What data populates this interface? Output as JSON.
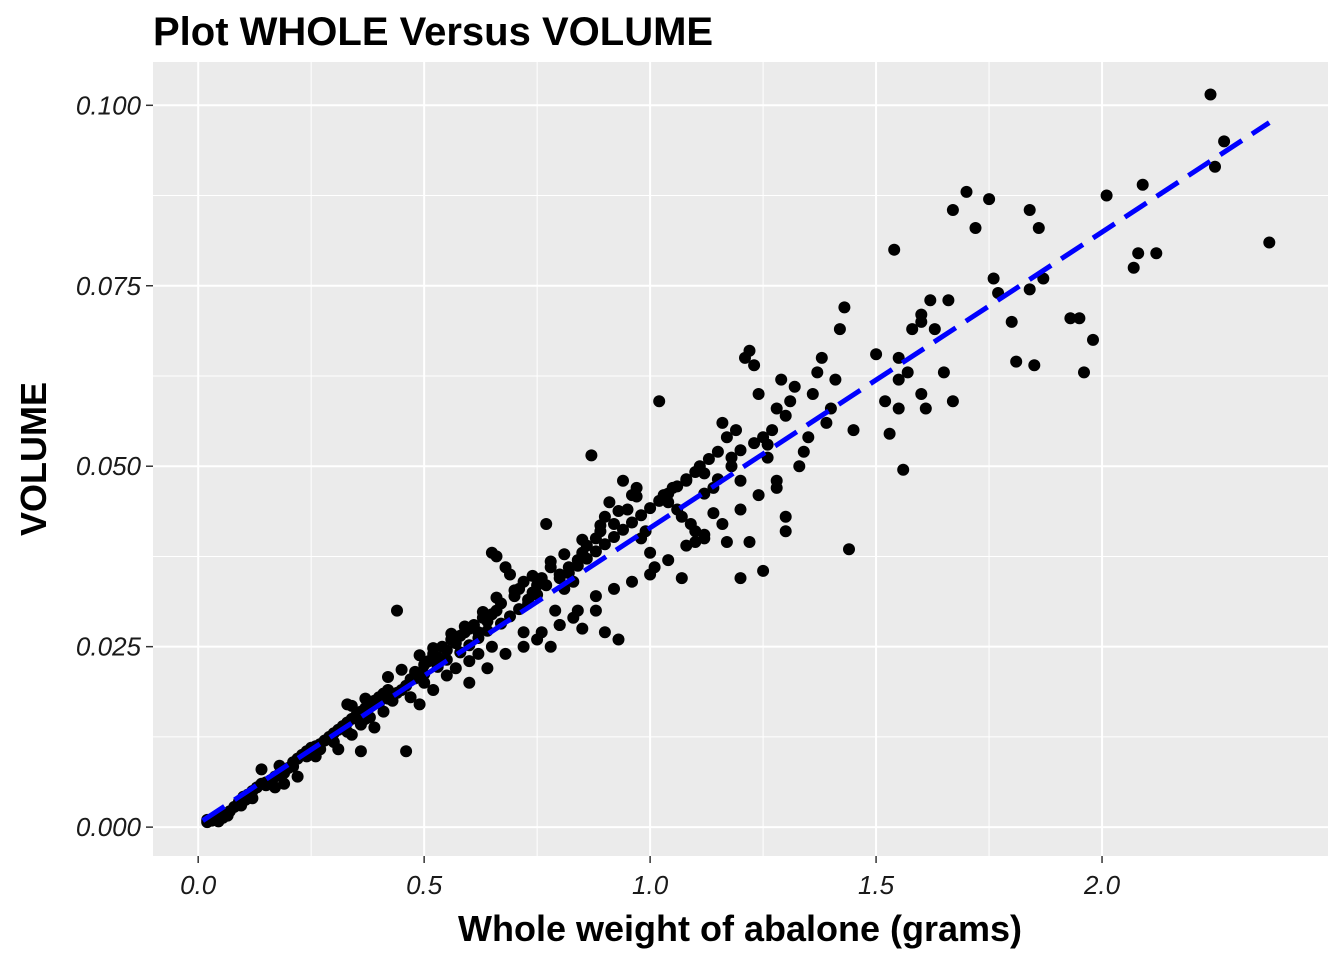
{
  "chart_data": {
    "type": "scatter",
    "title": "Plot WHOLE Versus VOLUME",
    "xlabel": "Whole weight of abalone (grams)",
    "ylabel": "VOLUME",
    "xlim": [
      -0.1,
      2.5
    ],
    "ylim": [
      -0.004,
      0.106
    ],
    "x_ticks": [
      0.0,
      0.5,
      1.0,
      1.5,
      2.0
    ],
    "x_tick_labels": [
      "0.0",
      "0.5",
      "1.0",
      "1.5",
      "2.0"
    ],
    "y_ticks": [
      0.0,
      0.025,
      0.05,
      0.075,
      0.1
    ],
    "y_tick_labels": [
      "0.000",
      "0.025",
      "0.050",
      "0.075",
      "0.100"
    ],
    "grid": true,
    "background": "#ebebeb",
    "point_color": "#000000",
    "trend_color": "#0000ff",
    "trend_line": {
      "style": "dashed",
      "x": [
        0.01,
        2.37
      ],
      "y": [
        0.0009,
        0.0976
      ]
    },
    "points": [
      [
        0.02,
        0.0007
      ],
      [
        0.03,
        0.0009
      ],
      [
        0.04,
        0.0012
      ],
      [
        0.05,
        0.0015
      ],
      [
        0.06,
        0.0018
      ],
      [
        0.035,
        0.001
      ],
      [
        0.045,
        0.0008
      ],
      [
        0.055,
        0.0013
      ],
      [
        0.065,
        0.0016
      ],
      [
        0.09,
        0.0035
      ],
      [
        0.1,
        0.0042
      ],
      [
        0.11,
        0.0045
      ],
      [
        0.12,
        0.005
      ],
      [
        0.095,
        0.003
      ],
      [
        0.105,
        0.0038
      ],
      [
        0.13,
        0.0055
      ],
      [
        0.14,
        0.006
      ],
      [
        0.15,
        0.0058
      ],
      [
        0.16,
        0.0065
      ],
      [
        0.17,
        0.007
      ],
      [
        0.18,
        0.0085
      ],
      [
        0.19,
        0.0075
      ],
      [
        0.2,
        0.0082
      ],
      [
        0.21,
        0.009
      ],
      [
        0.22,
        0.0095
      ],
      [
        0.23,
        0.01
      ],
      [
        0.24,
        0.0105
      ],
      [
        0.25,
        0.011
      ],
      [
        0.26,
        0.0112
      ],
      [
        0.27,
        0.0115
      ],
      [
        0.28,
        0.012
      ],
      [
        0.29,
        0.0125
      ],
      [
        0.3,
        0.013
      ],
      [
        0.31,
        0.0135
      ],
      [
        0.32,
        0.014
      ],
      [
        0.33,
        0.0145
      ],
      [
        0.34,
        0.015
      ],
      [
        0.35,
        0.0155
      ],
      [
        0.36,
        0.016
      ],
      [
        0.37,
        0.0165
      ],
      [
        0.38,
        0.017
      ],
      [
        0.39,
        0.0175
      ],
      [
        0.4,
        0.018
      ],
      [
        0.41,
        0.0185
      ],
      [
        0.42,
        0.019
      ],
      [
        0.14,
        0.008
      ],
      [
        0.17,
        0.0055
      ],
      [
        0.19,
        0.006
      ],
      [
        0.22,
        0.007
      ],
      [
        0.26,
        0.0098
      ],
      [
        0.31,
        0.0108
      ],
      [
        0.34,
        0.0128
      ],
      [
        0.36,
        0.0105
      ],
      [
        0.39,
        0.0138
      ],
      [
        0.33,
        0.017
      ],
      [
        0.37,
        0.015
      ],
      [
        0.41,
        0.016
      ],
      [
        0.44,
        0.03
      ],
      [
        0.46,
        0.0105
      ],
      [
        0.43,
        0.0175
      ],
      [
        0.45,
        0.019
      ],
      [
        0.47,
        0.0205
      ],
      [
        0.48,
        0.0215
      ],
      [
        0.5,
        0.0225
      ],
      [
        0.51,
        0.023
      ],
      [
        0.52,
        0.024
      ],
      [
        0.53,
        0.0235
      ],
      [
        0.54,
        0.025
      ],
      [
        0.55,
        0.0245
      ],
      [
        0.56,
        0.026
      ],
      [
        0.57,
        0.0255
      ],
      [
        0.58,
        0.0265
      ],
      [
        0.59,
        0.027
      ],
      [
        0.6,
        0.0275
      ],
      [
        0.61,
        0.028
      ],
      [
        0.62,
        0.027
      ],
      [
        0.63,
        0.029
      ],
      [
        0.64,
        0.0285
      ],
      [
        0.65,
        0.0295
      ],
      [
        0.66,
        0.03
      ],
      [
        0.67,
        0.031
      ],
      [
        0.47,
        0.018
      ],
      [
        0.49,
        0.017
      ],
      [
        0.5,
        0.02
      ],
      [
        0.52,
        0.019
      ],
      [
        0.55,
        0.021
      ],
      [
        0.57,
        0.022
      ],
      [
        0.6,
        0.023
      ],
      [
        0.62,
        0.024
      ],
      [
        0.65,
        0.025
      ],
      [
        0.65,
        0.038
      ],
      [
        0.66,
        0.0375
      ],
      [
        0.68,
        0.036
      ],
      [
        0.69,
        0.035
      ],
      [
        0.7,
        0.032
      ],
      [
        0.71,
        0.033
      ],
      [
        0.72,
        0.034
      ],
      [
        0.73,
        0.031
      ],
      [
        0.74,
        0.0325
      ],
      [
        0.75,
        0.0335
      ],
      [
        0.76,
        0.0345
      ],
      [
        0.77,
        0.042
      ],
      [
        0.78,
        0.036
      ],
      [
        0.79,
        0.03
      ],
      [
        0.8,
        0.035
      ],
      [
        0.81,
        0.033
      ],
      [
        0.82,
        0.036
      ],
      [
        0.83,
        0.034
      ],
      [
        0.84,
        0.037
      ],
      [
        0.85,
        0.038
      ],
      [
        0.86,
        0.039
      ],
      [
        0.87,
        0.0515
      ],
      [
        0.88,
        0.04
      ],
      [
        0.89,
        0.041
      ],
      [
        0.9,
        0.043
      ],
      [
        0.91,
        0.045
      ],
      [
        0.92,
        0.042
      ],
      [
        0.72,
        0.027
      ],
      [
        0.75,
        0.026
      ],
      [
        0.78,
        0.025
      ],
      [
        0.8,
        0.028
      ],
      [
        0.83,
        0.029
      ],
      [
        0.85,
        0.0275
      ],
      [
        0.88,
        0.03
      ],
      [
        0.9,
        0.027
      ],
      [
        0.93,
        0.026
      ],
      [
        0.94,
        0.048
      ],
      [
        0.95,
        0.044
      ],
      [
        0.96,
        0.046
      ],
      [
        0.97,
        0.047
      ],
      [
        0.98,
        0.04
      ],
      [
        0.99,
        0.041
      ],
      [
        1.0,
        0.038
      ],
      [
        1.01,
        0.036
      ],
      [
        1.02,
        0.059
      ],
      [
        1.03,
        0.046
      ],
      [
        1.04,
        0.045
      ],
      [
        1.05,
        0.047
      ],
      [
        1.06,
        0.044
      ],
      [
        1.07,
        0.043
      ],
      [
        1.08,
        0.048
      ],
      [
        1.09,
        0.042
      ],
      [
        1.1,
        0.041
      ],
      [
        1.11,
        0.05
      ],
      [
        1.12,
        0.049
      ],
      [
        1.13,
        0.051
      ],
      [
        1.14,
        0.047
      ],
      [
        1.15,
        0.052
      ],
      [
        1.16,
        0.056
      ],
      [
        1.17,
        0.054
      ],
      [
        1.18,
        0.05
      ],
      [
        1.19,
        0.055
      ],
      [
        1.2,
        0.048
      ],
      [
        1.07,
        0.0345
      ],
      [
        1.1,
        0.0395
      ],
      [
        1.12,
        0.0405
      ],
      [
        1.14,
        0.0435
      ],
      [
        1.17,
        0.0395
      ],
      [
        1.2,
        0.0345
      ],
      [
        1.22,
        0.0395
      ],
      [
        1.25,
        0.0355
      ],
      [
        1.3,
        0.041
      ],
      [
        1.21,
        0.065
      ],
      [
        1.22,
        0.066
      ],
      [
        1.23,
        0.064
      ],
      [
        1.24,
        0.06
      ],
      [
        1.25,
        0.054
      ],
      [
        1.26,
        0.053
      ],
      [
        1.27,
        0.055
      ],
      [
        1.28,
        0.058
      ],
      [
        1.29,
        0.062
      ],
      [
        1.3,
        0.057
      ],
      [
        1.31,
        0.059
      ],
      [
        1.32,
        0.061
      ],
      [
        1.33,
        0.05
      ],
      [
        1.34,
        0.052
      ],
      [
        1.35,
        0.054
      ],
      [
        1.36,
        0.06
      ],
      [
        1.37,
        0.063
      ],
      [
        1.38,
        0.065
      ],
      [
        1.39,
        0.056
      ],
      [
        1.4,
        0.058
      ],
      [
        1.41,
        0.062
      ],
      [
        1.42,
        0.069
      ],
      [
        1.43,
        0.072
      ],
      [
        1.44,
        0.0385
      ],
      [
        1.45,
        0.055
      ],
      [
        1.28,
        0.047
      ],
      [
        1.3,
        0.043
      ],
      [
        1.5,
        0.0655
      ],
      [
        1.52,
        0.059
      ],
      [
        1.54,
        0.08
      ],
      [
        1.55,
        0.058
      ],
      [
        1.56,
        0.0495
      ],
      [
        1.57,
        0.063
      ],
      [
        1.58,
        0.069
      ],
      [
        1.6,
        0.07
      ],
      [
        1.62,
        0.073
      ],
      [
        1.53,
        0.0545
      ],
      [
        1.55,
        0.062
      ],
      [
        1.6,
        0.071
      ],
      [
        1.61,
        0.058
      ],
      [
        1.63,
        0.069
      ],
      [
        1.66,
        0.073
      ],
      [
        1.67,
        0.0855
      ],
      [
        1.7,
        0.088
      ],
      [
        1.72,
        0.083
      ],
      [
        1.67,
        0.059
      ],
      [
        1.65,
        0.063
      ],
      [
        1.75,
        0.087
      ],
      [
        1.76,
        0.076
      ],
      [
        1.77,
        0.074
      ],
      [
        1.8,
        0.07
      ],
      [
        1.81,
        0.0645
      ],
      [
        1.84,
        0.0855
      ],
      [
        1.85,
        0.064
      ],
      [
        1.86,
        0.083
      ],
      [
        1.87,
        0.076
      ],
      [
        1.84,
        0.0745
      ],
      [
        1.93,
        0.0705
      ],
      [
        1.95,
        0.0705
      ],
      [
        1.96,
        0.063
      ],
      [
        1.98,
        0.0675
      ],
      [
        2.01,
        0.0875
      ],
      [
        2.07,
        0.0775
      ],
      [
        2.08,
        0.0795
      ],
      [
        2.09,
        0.089
      ],
      [
        2.12,
        0.0795
      ],
      [
        2.24,
        0.1015
      ],
      [
        2.25,
        0.0915
      ],
      [
        2.27,
        0.095
      ],
      [
        2.37,
        0.081
      ],
      [
        1.55,
        0.065
      ],
      [
        1.6,
        0.06
      ],
      [
        0.02,
        0.001
      ],
      [
        0.04,
        0.0014
      ],
      [
        0.08,
        0.0028
      ],
      [
        0.07,
        0.0022
      ],
      [
        0.12,
        0.004
      ],
      [
        0.15,
        0.0062
      ],
      [
        0.18,
        0.0074
      ],
      [
        0.21,
        0.0084
      ],
      [
        0.24,
        0.0098
      ],
      [
        0.27,
        0.0108
      ],
      [
        0.3,
        0.0118
      ],
      [
        0.33,
        0.0132
      ],
      [
        0.36,
        0.0142
      ],
      [
        0.38,
        0.0152
      ],
      [
        0.4,
        0.0172
      ],
      [
        0.42,
        0.0178
      ],
      [
        0.44,
        0.0186
      ],
      [
        0.46,
        0.0196
      ],
      [
        0.48,
        0.0206
      ],
      [
        0.5,
        0.0212
      ],
      [
        0.53,
        0.0222
      ],
      [
        0.55,
        0.0232
      ],
      [
        0.58,
        0.0242
      ],
      [
        0.6,
        0.0252
      ],
      [
        0.62,
        0.0262
      ],
      [
        0.64,
        0.0272
      ],
      [
        0.67,
        0.0282
      ],
      [
        0.69,
        0.0292
      ],
      [
        0.71,
        0.0302
      ],
      [
        0.73,
        0.0315
      ],
      [
        0.75,
        0.0322
      ],
      [
        0.77,
        0.0335
      ],
      [
        0.8,
        0.0345
      ],
      [
        0.82,
        0.0352
      ],
      [
        0.84,
        0.0362
      ],
      [
        0.86,
        0.0372
      ],
      [
        0.88,
        0.0382
      ],
      [
        0.9,
        0.0392
      ],
      [
        0.92,
        0.0402
      ],
      [
        0.94,
        0.0412
      ],
      [
        0.96,
        0.0422
      ],
      [
        0.98,
        0.0432
      ],
      [
        1.0,
        0.0442
      ],
      [
        1.02,
        0.0452
      ],
      [
        1.04,
        0.0462
      ],
      [
        1.06,
        0.0472
      ],
      [
        1.08,
        0.0482
      ],
      [
        1.1,
        0.0492
      ],
      [
        1.12,
        0.0462
      ],
      [
        1.15,
        0.0482
      ],
      [
        1.18,
        0.0512
      ],
      [
        1.2,
        0.0522
      ],
      [
        1.23,
        0.0532
      ],
      [
        1.26,
        0.0512
      ],
      [
        0.34,
        0.0168
      ],
      [
        0.37,
        0.0178
      ],
      [
        0.42,
        0.0208
      ],
      [
        0.45,
        0.0218
      ],
      [
        0.49,
        0.0238
      ],
      [
        0.52,
        0.0248
      ],
      [
        0.56,
        0.0268
      ],
      [
        0.59,
        0.0278
      ],
      [
        0.63,
        0.0298
      ],
      [
        0.66,
        0.0318
      ],
      [
        0.7,
        0.0328
      ],
      [
        0.74,
        0.0348
      ],
      [
        0.78,
        0.0368
      ],
      [
        0.81,
        0.0378
      ],
      [
        0.85,
        0.0398
      ],
      [
        0.89,
        0.0418
      ],
      [
        0.93,
        0.0438
      ],
      [
        0.97,
        0.0458
      ],
      [
        0.6,
        0.02
      ],
      [
        0.64,
        0.022
      ],
      [
        0.68,
        0.024
      ],
      [
        0.72,
        0.025
      ],
      [
        0.76,
        0.027
      ],
      [
        0.8,
        0.028
      ],
      [
        0.84,
        0.03
      ],
      [
        0.88,
        0.032
      ],
      [
        0.92,
        0.033
      ],
      [
        0.96,
        0.034
      ],
      [
        1.0,
        0.035
      ],
      [
        1.04,
        0.037
      ],
      [
        1.08,
        0.039
      ],
      [
        1.12,
        0.04
      ],
      [
        1.16,
        0.042
      ],
      [
        1.2,
        0.044
      ],
      [
        1.24,
        0.046
      ],
      [
        1.28,
        0.048
      ]
    ]
  }
}
